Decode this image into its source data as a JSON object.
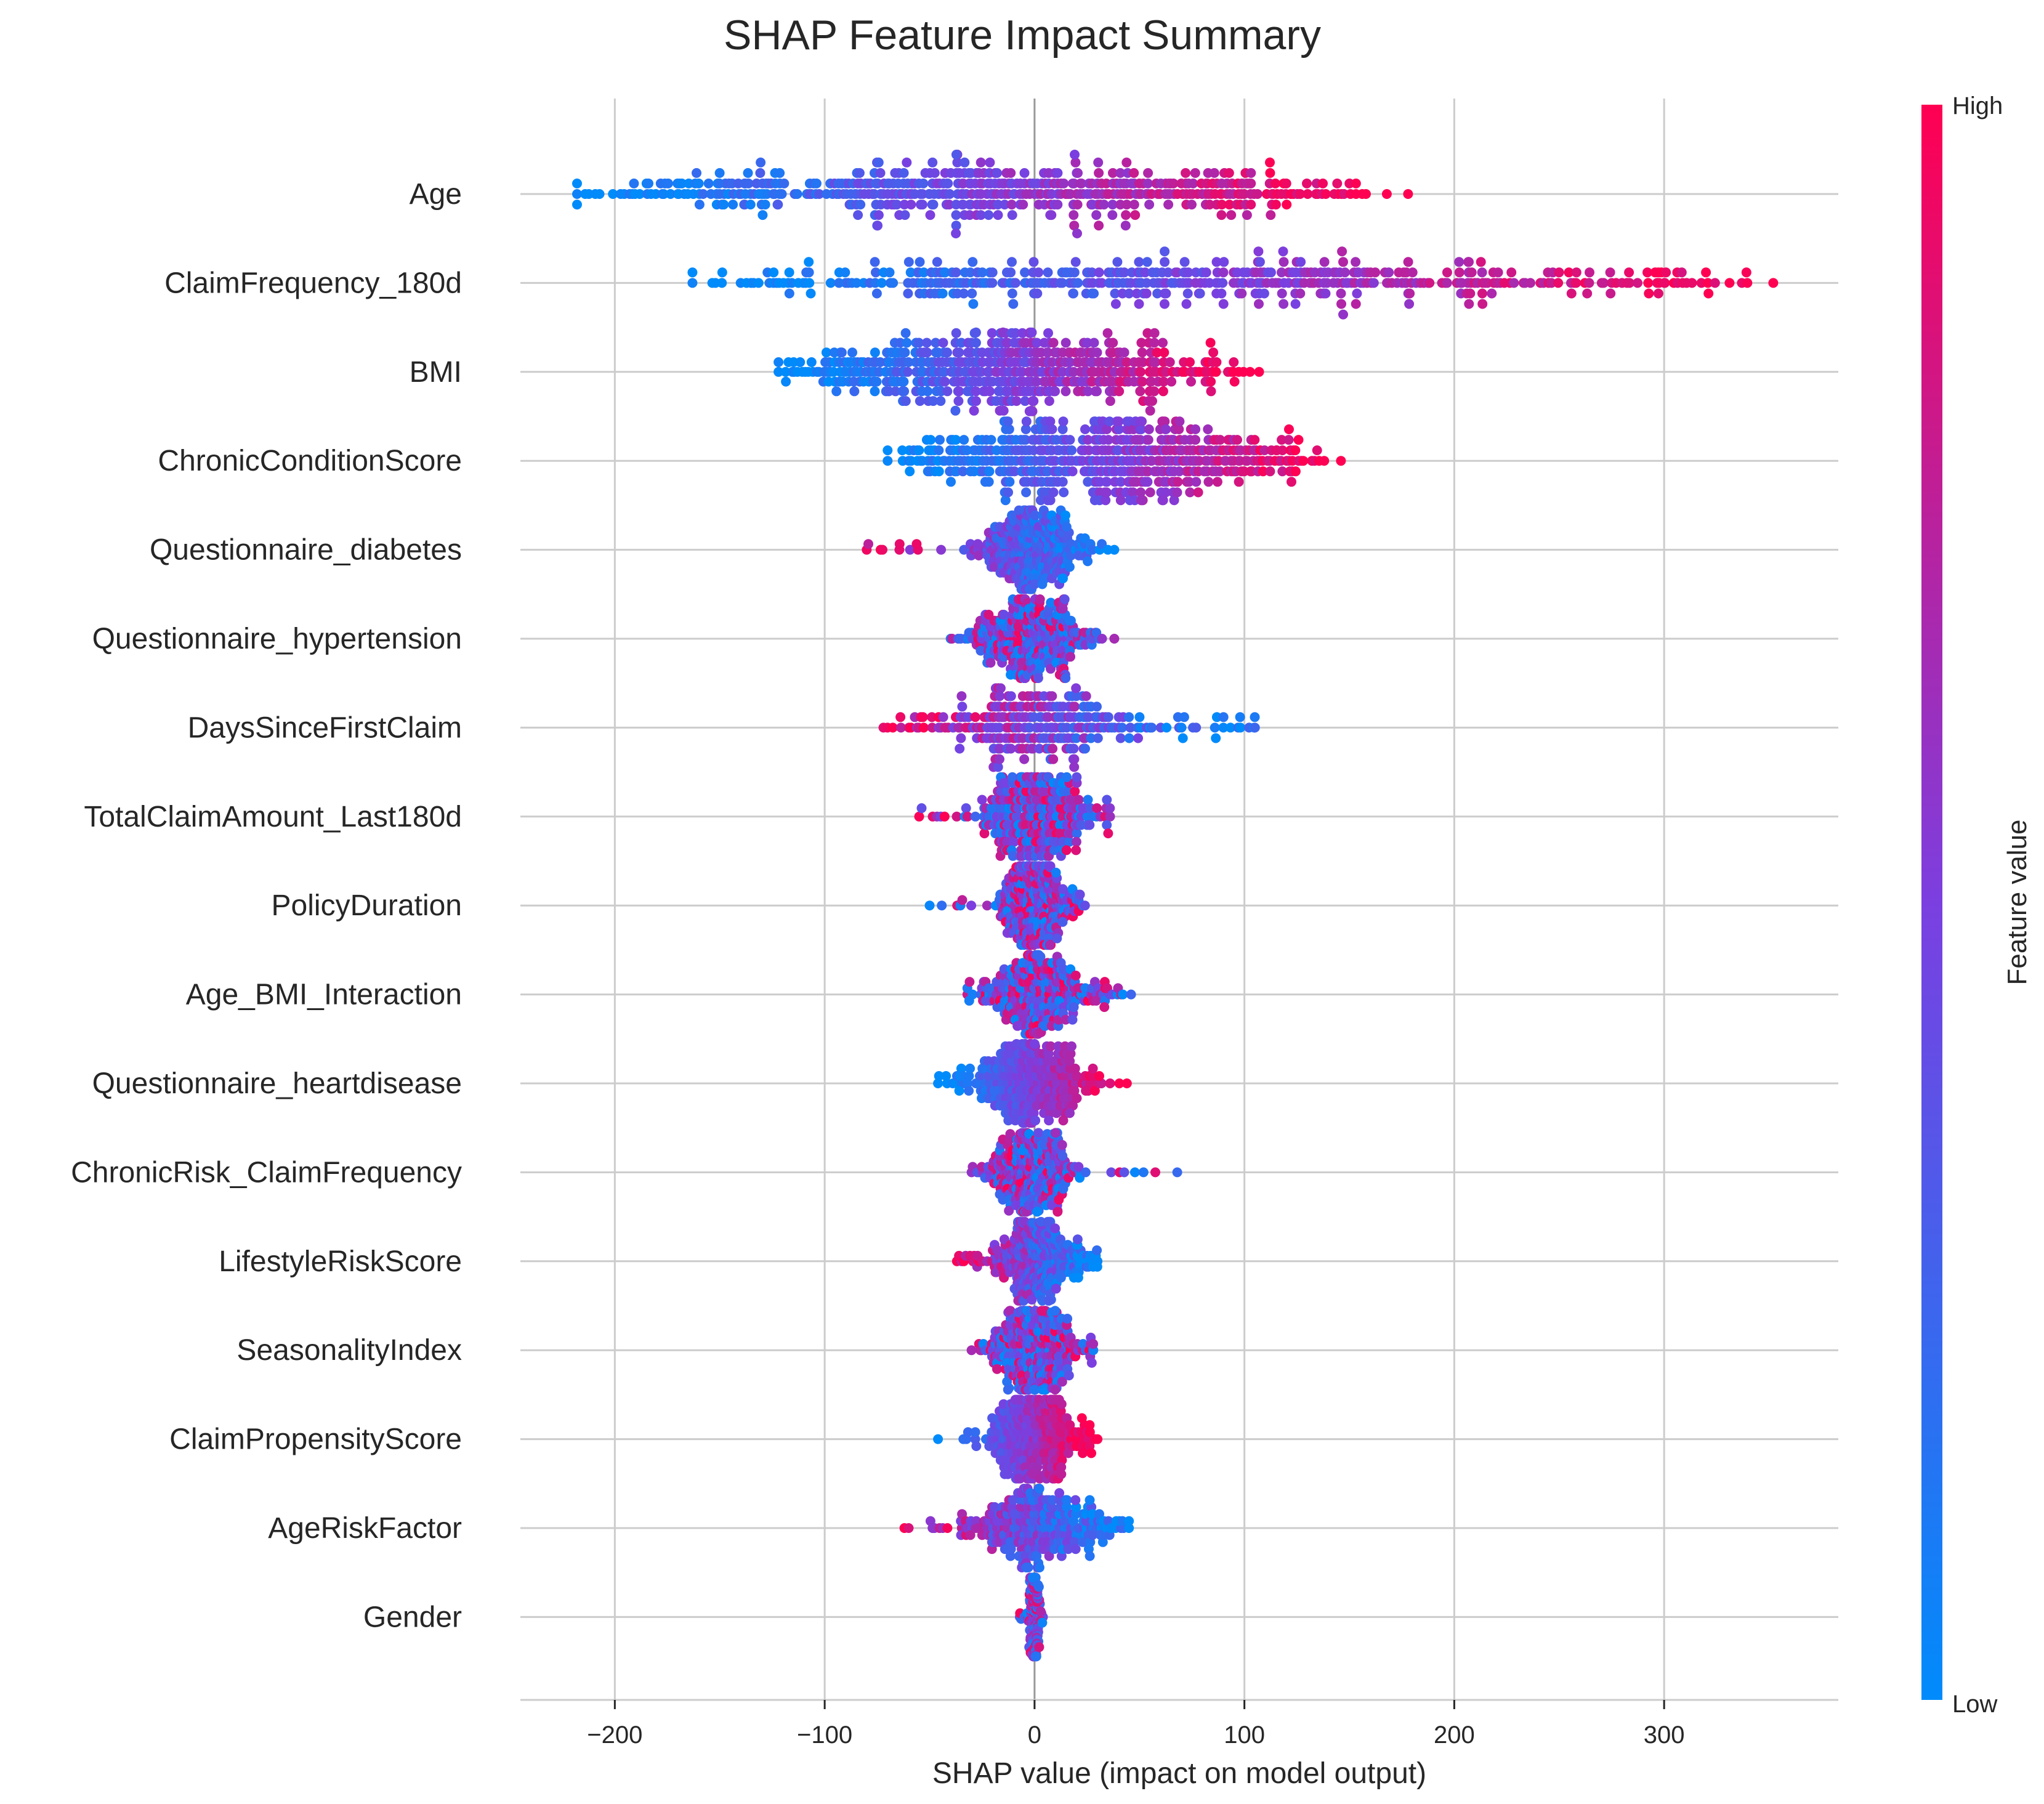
{
  "chart_data": {
    "type": "scatter",
    "variant": "shap-beeswarm",
    "title": "SHAP Feature Impact Summary",
    "xlabel": "SHAP value (impact on model output)",
    "xlim": [
      -245,
      383
    ],
    "xticks": [
      -200,
      -100,
      0,
      100,
      200,
      300
    ],
    "xtick_labels": [
      "−200",
      "−100",
      "0",
      "100",
      "200",
      "300"
    ],
    "grid": true,
    "colorbar": {
      "title": "Feature value",
      "high_label": "High",
      "low_label": "Low",
      "low_color": "#008bfb",
      "high_color": "#ff0052"
    },
    "features": [
      {
        "name": "Age",
        "min": -218,
        "max": 178,
        "n": 520,
        "spread": 1.0,
        "trend": "positive"
      },
      {
        "name": "ClaimFrequency_180d",
        "min": -163,
        "max": 352,
        "n": 460,
        "spread": 1.0,
        "trend": "positive"
      },
      {
        "name": "BMI",
        "min": -122,
        "max": 107,
        "n": 520,
        "spread": 1.0,
        "trend": "positive"
      },
      {
        "name": "ChronicConditionScore",
        "min": -70,
        "max": 146,
        "n": 520,
        "spread": 1.0,
        "trend": "positive"
      },
      {
        "name": "Questionnaire_diabetes",
        "min": -80,
        "max": 38,
        "n": 300,
        "spread": 0.7,
        "trend": "negative"
      },
      {
        "name": "Questionnaire_hypertension",
        "min": -40,
        "max": 38,
        "n": 300,
        "spread": 0.7,
        "trend": "mixed"
      },
      {
        "name": "DaysSinceFirstClaim",
        "min": -72,
        "max": 105,
        "n": 260,
        "spread": 0.7,
        "trend": "negative"
      },
      {
        "name": "TotalClaimAmount_Last180d",
        "min": -55,
        "max": 36,
        "n": 280,
        "spread": 0.7,
        "trend": "mixed"
      },
      {
        "name": "PolicyDuration",
        "min": -50,
        "max": 24,
        "n": 280,
        "spread": 0.7,
        "trend": "mixed"
      },
      {
        "name": "Age_BMI_Interaction",
        "min": -32,
        "max": 46,
        "n": 280,
        "spread": 0.7,
        "trend": "mixed"
      },
      {
        "name": "Questionnaire_heartdisease",
        "min": -46,
        "max": 44,
        "n": 280,
        "spread": 0.7,
        "trend": "positive"
      },
      {
        "name": "ChronicRisk_ClaimFrequency",
        "min": -30,
        "max": 68,
        "n": 280,
        "spread": 0.7,
        "trend": "mixed"
      },
      {
        "name": "LifestyleRiskScore",
        "min": -37,
        "max": 30,
        "n": 280,
        "spread": 0.7,
        "trend": "negative"
      },
      {
        "name": "SeasonalityIndex",
        "min": -30,
        "max": 28,
        "n": 280,
        "spread": 0.7,
        "trend": "mixed"
      },
      {
        "name": "ClaimPropensityScore",
        "min": -46,
        "max": 30,
        "n": 280,
        "spread": 0.7,
        "trend": "positive"
      },
      {
        "name": "AgeRiskFactor",
        "min": -62,
        "max": 45,
        "n": 280,
        "spread": 0.7,
        "trend": "negative"
      },
      {
        "name": "Gender",
        "min": -7,
        "max": 4,
        "n": 160,
        "spread": 0.5,
        "trend": "mixed"
      }
    ]
  }
}
